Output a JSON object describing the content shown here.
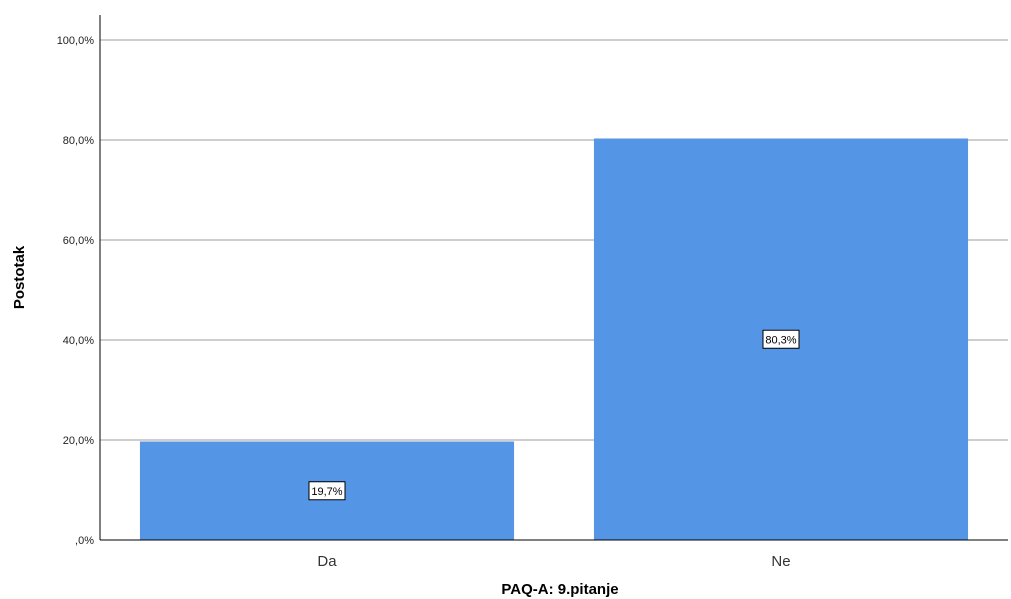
{
  "chart_data": {
    "type": "bar",
    "categories": [
      "Da",
      "Ne"
    ],
    "values": [
      19.7,
      80.3
    ],
    "data_labels": [
      "19,7%",
      "80,3%"
    ],
    "ylabel": "Postotak",
    "xlabel": "PAQ-A: 9.pitanje",
    "ylim": [
      0,
      100
    ],
    "yticks": [
      0,
      20,
      40,
      60,
      80,
      100
    ],
    "ytick_labels": [
      ",0%",
      "20,0%",
      "40,0%",
      "60,0%",
      "80,0%",
      "100,0%"
    ],
    "grid": true,
    "bar_color": "#5595e5",
    "grid_color": "#bdbdbd"
  }
}
